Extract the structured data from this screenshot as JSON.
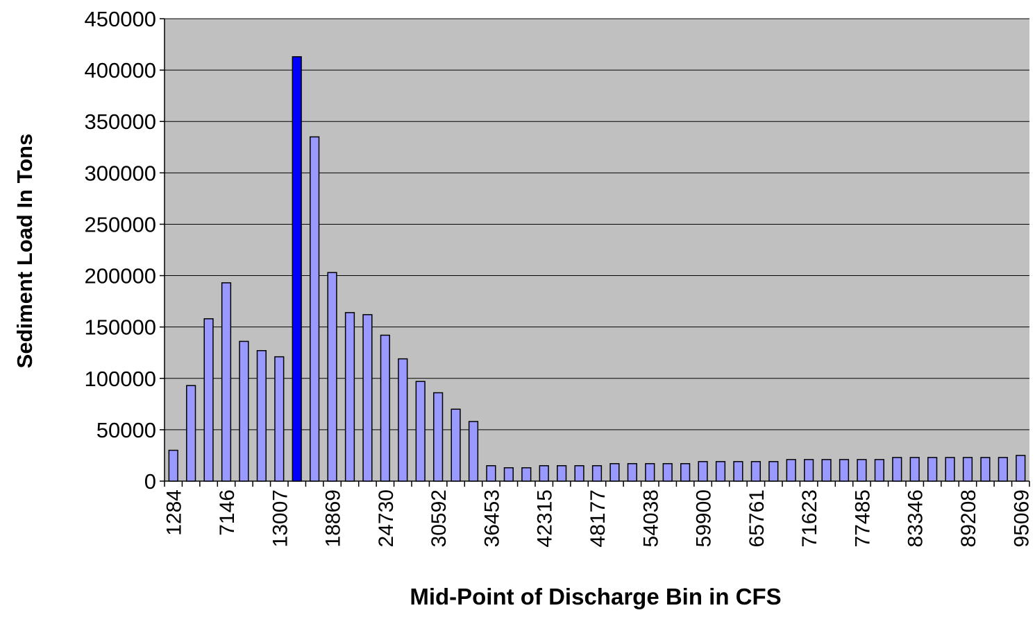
{
  "chart_data": {
    "type": "bar",
    "x_label": "Mid-Point of Discharge Bin  in CFS",
    "y_label": "Sediment Load  In Tons",
    "categories": [
      "1284",
      null,
      null,
      "7146",
      null,
      null,
      "13007",
      null,
      null,
      "18869",
      null,
      null,
      "24730",
      null,
      null,
      "30592",
      null,
      null,
      "36453",
      null,
      null,
      "42315",
      null,
      null,
      "48177",
      null,
      null,
      "54038",
      null,
      null,
      "59900",
      null,
      null,
      "65761",
      null,
      null,
      "71623",
      null,
      null,
      "77485",
      null,
      null,
      "83346",
      null,
      null,
      "89208",
      null,
      null,
      "95069"
    ],
    "values": [
      30000,
      93000,
      158000,
      193000,
      136000,
      127000,
      121000,
      413000,
      335000,
      203000,
      164000,
      162000,
      142000,
      119000,
      97000,
      86000,
      70000,
      58000,
      15000,
      13000,
      13000,
      15000,
      15000,
      15000,
      15000,
      17000,
      17000,
      17000,
      17000,
      17000,
      19000,
      19000,
      19000,
      19000,
      19000,
      21000,
      21000,
      21000,
      21000,
      21000,
      21000,
      23000,
      23000,
      23000,
      23000,
      23000,
      23000,
      23000,
      25000
    ],
    "color": "#9999ff",
    "colors": [
      "#9999ff",
      "#9999ff",
      "#9999ff",
      "#9999ff",
      "#9999ff",
      "#9999ff",
      "#9999ff",
      "#0000ff",
      "#9999ff",
      "#9999ff",
      "#9999ff",
      "#9999ff",
      "#9999ff",
      "#9999ff",
      "#9999ff",
      "#9999ff",
      "#9999ff",
      "#9999ff",
      "#9999ff",
      "#9999ff",
      "#9999ff",
      "#9999ff",
      "#9999ff",
      "#9999ff",
      "#9999ff",
      "#9999ff",
      "#9999ff",
      "#9999ff",
      "#9999ff",
      "#9999ff",
      "#9999ff",
      "#9999ff",
      "#9999ff",
      "#9999ff",
      "#9999ff",
      "#9999ff",
      "#9999ff",
      "#9999ff",
      "#9999ff",
      "#9999ff",
      "#9999ff",
      "#9999ff",
      "#9999ff",
      "#9999ff",
      "#9999ff",
      "#9999ff",
      "#9999ff",
      "#9999ff",
      "#9999ff"
    ],
    "ylim": [
      0,
      450000
    ],
    "yticks": [
      0,
      50000,
      100000,
      150000,
      200000,
      250000,
      300000,
      350000,
      400000,
      450000
    ],
    "grid": true
  }
}
